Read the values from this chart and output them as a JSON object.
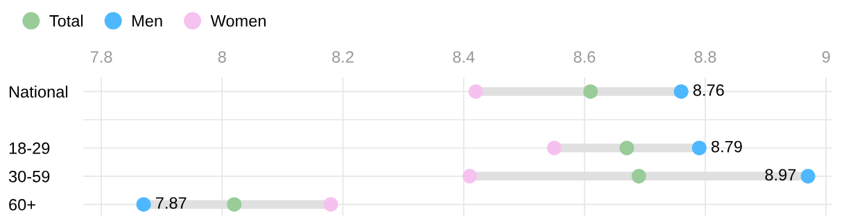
{
  "chart_data": {
    "type": "scatter",
    "orientation": "horizontal",
    "categories": [
      "National",
      null,
      "18-29",
      "30-59",
      "60+"
    ],
    "series": [
      {
        "name": "Total",
        "color": "#99cc99",
        "values": [
          8.61,
          null,
          8.67,
          8.69,
          8.02
        ]
      },
      {
        "name": "Men",
        "color": "#4db8ff",
        "values": [
          8.76,
          null,
          8.79,
          8.97,
          7.87
        ],
        "value_labels": [
          "8.76",
          null,
          "8.79",
          "8.97",
          "7.87"
        ]
      },
      {
        "name": "Women",
        "color": "#f5c2f0",
        "values": [
          8.42,
          null,
          8.55,
          8.41,
          8.18
        ]
      }
    ],
    "xlim": [
      7.77,
      9.01
    ],
    "xticks": [
      7.8,
      8,
      8.2,
      8.4,
      8.6,
      8.8,
      9
    ],
    "grid": true,
    "legend": "top left",
    "marker": "circle"
  }
}
